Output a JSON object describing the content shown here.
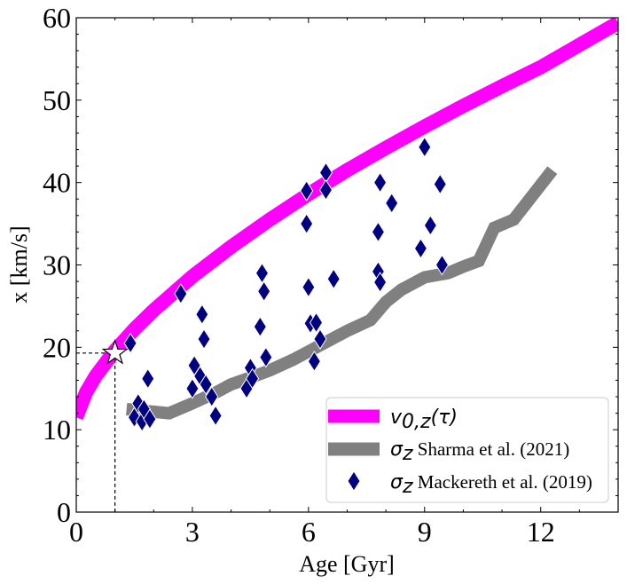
{
  "chart_data": {
    "type": "line",
    "xlabel": "Age [Gyr]",
    "ylabel": "x [km/s]",
    "xlim": [
      0,
      14
    ],
    "ylim": [
      0,
      60
    ],
    "xticks": [
      0,
      3,
      6,
      9,
      12
    ],
    "yticks": [
      0,
      10,
      20,
      30,
      40,
      50,
      60
    ],
    "x_tick_labels": [
      "0",
      "3",
      "6",
      "9",
      "12"
    ],
    "y_tick_labels": [
      "0",
      "10",
      "20",
      "30",
      "40",
      "50",
      "60"
    ],
    "grid": false,
    "legend_position": "lower-right",
    "series": [
      {
        "name": "v0,z(τ)",
        "legend_symbol": "v",
        "legend_subscript": "0,z",
        "legend_rest": "(τ)",
        "legend_math": "v_{0,z}(τ)",
        "style": "thick-line",
        "color": "#ff00ff",
        "x": [
          0,
          0.25,
          0.5,
          1,
          1.5,
          2,
          3,
          4,
          5,
          6,
          7,
          8,
          9,
          10,
          11,
          12,
          13,
          14
        ],
        "y": [
          11.5,
          14.5,
          16.5,
          19.6,
          22.2,
          24.5,
          28.6,
          32.2,
          35.5,
          38.6,
          41.5,
          44.2,
          46.8,
          49.3,
          51.7,
          54.0,
          56.7,
          59.4
        ]
      },
      {
        "name": "σz Sharma et al. (2021)",
        "legend_symbol": "σ",
        "legend_subscript": "z",
        "legend_rest": " Sharma et al. (2021)",
        "style": "thick-line",
        "color": "#808080",
        "x": [
          1.3,
          2.4,
          3.0,
          3.6,
          4.0,
          4.6,
          5.0,
          5.6,
          6.0,
          6.6,
          7.0,
          7.6,
          8.0,
          8.4,
          9.0,
          9.6,
          10.0,
          10.4,
          10.8,
          11.3,
          11.8,
          12.3
        ],
        "y": [
          12.5,
          12.0,
          13.2,
          14.5,
          15.5,
          16.5,
          17.2,
          18.5,
          19.5,
          21.0,
          22.0,
          23.3,
          25.5,
          27.0,
          28.5,
          29.0,
          29.8,
          30.5,
          34.5,
          35.5,
          38.5,
          41.5
        ]
      },
      {
        "name": "σz Mackereth et al. (2019)",
        "legend_symbol": "σ",
        "legend_subscript": "z",
        "legend_rest": " Mackereth et al. (2019)",
        "style": "diamond-markers",
        "color": "#000080",
        "x": [
          1.4,
          1.5,
          1.6,
          1.7,
          1.75,
          1.85,
          1.9,
          2.7,
          3.0,
          3.05,
          3.2,
          3.25,
          3.3,
          3.35,
          3.5,
          3.6,
          4.4,
          4.5,
          4.55,
          4.75,
          4.8,
          4.85,
          4.9,
          5.95,
          5.95,
          6.0,
          6.05,
          6.15,
          6.2,
          6.3,
          6.45,
          6.45,
          6.65,
          7.8,
          7.8,
          7.85,
          7.85,
          8.15,
          8.9,
          9.0,
          9.15,
          9.4,
          9.45
        ],
        "y": [
          20.5,
          11.5,
          13.2,
          11.0,
          12.5,
          16.2,
          11.3,
          26.5,
          15.0,
          17.8,
          16.5,
          24.0,
          21.0,
          15.5,
          14.0,
          11.7,
          15.0,
          17.5,
          16.2,
          22.5,
          29.0,
          26.8,
          18.8,
          39.0,
          35.0,
          27.3,
          22.9,
          18.3,
          23.0,
          21.0,
          41.2,
          39.1,
          28.3,
          34.0,
          29.2,
          27.9,
          40.0,
          37.5,
          32.0,
          44.3,
          34.8,
          39.8,
          30.0
        ]
      }
    ],
    "reference_point": {
      "marker": "star",
      "x": 1.0,
      "y": 19.3
    }
  }
}
